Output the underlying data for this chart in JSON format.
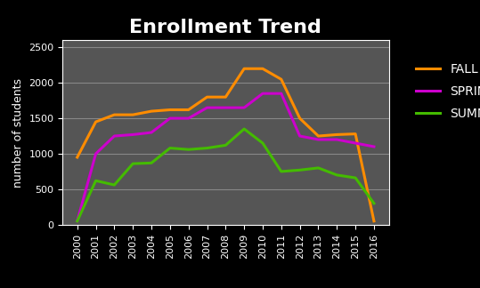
{
  "title": "Enrollment Trend",
  "ylabel": "number of students",
  "years": [
    2000,
    2001,
    2002,
    2003,
    2004,
    2005,
    2006,
    2007,
    2008,
    2009,
    2010,
    2011,
    2012,
    2013,
    2014,
    2015,
    2016
  ],
  "fall": [
    950,
    1450,
    1550,
    1550,
    1600,
    1620,
    1620,
    1800,
    1800,
    2200,
    2200,
    2050,
    1500,
    1250,
    1270,
    1280,
    50
  ],
  "spring": [
    50,
    1000,
    1250,
    1270,
    1300,
    1500,
    1500,
    1650,
    1650,
    1650,
    1850,
    1850,
    1250,
    1200,
    1200,
    1150,
    1100
  ],
  "summer": [
    50,
    620,
    560,
    860,
    870,
    1080,
    1060,
    1080,
    1120,
    1350,
    1150,
    750,
    770,
    800,
    700,
    660,
    300
  ],
  "fall_color": "#FF8C00",
  "spring_color": "#CC00CC",
  "summer_color": "#44BB00",
  "background_color": "#000000",
  "plot_bg_color": "#555555",
  "title_color": "#FFFFFF",
  "label_color": "#FFFFFF",
  "tick_color": "#FFFFFF",
  "grid_color": "#888888",
  "ylim": [
    0,
    2600
  ],
  "yticks": [
    0,
    500,
    1000,
    1500,
    2000,
    2500
  ],
  "legend_labels": [
    "FALL",
    "SPRING",
    "SUMMER"
  ],
  "legend_bg": "#000000",
  "legend_text_color": "#FFFFFF",
  "title_fontsize": 16,
  "label_fontsize": 9,
  "tick_fontsize": 8,
  "legend_fontsize": 10,
  "line_width": 2.2
}
